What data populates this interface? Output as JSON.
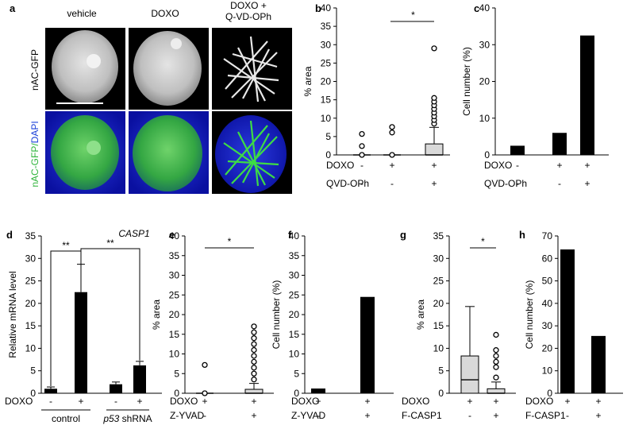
{
  "figure": {
    "panel_letters": [
      "a",
      "b",
      "c",
      "d",
      "e",
      "f",
      "g",
      "h"
    ],
    "micrograph": {
      "column_labels": [
        "vehicle",
        "DOXO",
        "DOXO +",
        "Q-VD-OPh"
      ],
      "row_labels": [
        "nAC-GFP",
        "nAC-GFP/",
        "DAPI"
      ]
    },
    "gene_label": "CASP1",
    "significance": "*",
    "significance_double": "**",
    "sign_minus": "-",
    "sign_plus": "+",
    "group_labels": [
      "control",
      "p53",
      " shRNA"
    ]
  },
  "chart_data": [
    {
      "panel": "b",
      "type": "box",
      "ylabel": "% area",
      "ylim": [
        0,
        40
      ],
      "yticks": [
        0,
        5,
        10,
        15,
        20,
        25,
        30,
        35,
        40
      ],
      "groups": [
        {
          "min": 0,
          "q1": 0,
          "median": 0,
          "q3": 0,
          "max": 0,
          "outliers": [
            0,
            2.4,
            5.7
          ]
        },
        {
          "min": 0,
          "q1": 0,
          "median": 0,
          "q3": 0,
          "max": 0,
          "outliers": [
            0,
            6.1,
            7.6
          ]
        },
        {
          "min": 0,
          "q1": 0,
          "median": 0,
          "q3": 3,
          "max": 7.5,
          "outliers": [
            8.5,
            9.5,
            10.5,
            11.5,
            12.5,
            13.5,
            14.5,
            15.5,
            29
          ]
        }
      ],
      "treatments": [
        {
          "label": "DOXO",
          "values": [
            "-",
            "+",
            "+"
          ]
        },
        {
          "label": "QVD-OPh",
          "values": [
            "-",
            "-",
            "+"
          ]
        }
      ],
      "significance": [
        {
          "from": 1,
          "to": 2,
          "label": "*"
        }
      ]
    },
    {
      "panel": "c",
      "type": "bar",
      "ylabel": "Cell number (%)",
      "ylim": [
        0,
        40
      ],
      "yticks": [
        0,
        10,
        20,
        30,
        40
      ],
      "values": [
        2.5,
        6,
        32.5
      ],
      "treatments": [
        {
          "label": "DOXO",
          "values": [
            "-",
            "+",
            "+"
          ]
        },
        {
          "label": "QVD-OPh",
          "values": [
            "-",
            "-",
            "+"
          ]
        }
      ]
    },
    {
      "panel": "d",
      "type": "bar",
      "ylabel": "Relative mRNA level",
      "ylim": [
        0,
        35
      ],
      "yticks": [
        0,
        5,
        10,
        15,
        20,
        25,
        30,
        35
      ],
      "values": [
        1,
        22.5,
        2,
        6.2
      ],
      "errors": [
        0.4,
        6.2,
        0.5,
        0.9
      ],
      "treatments": [
        {
          "label": "DOXO",
          "values": [
            "-",
            "+",
            "-",
            "+"
          ]
        }
      ],
      "groups": [
        {
          "label": "control",
          "span": [
            0,
            1
          ]
        },
        {
          "label": "p53 shRNA",
          "span": [
            2,
            3
          ]
        }
      ],
      "significance": [
        {
          "from": 0,
          "to": 1,
          "label": "**"
        },
        {
          "from": 1,
          "to": 3,
          "label": "**"
        }
      ]
    },
    {
      "panel": "e",
      "type": "box",
      "ylabel": "% area",
      "ylim": [
        0,
        40
      ],
      "yticks": [
        0,
        5,
        10,
        15,
        20,
        25,
        30,
        35,
        40
      ],
      "groups": [
        {
          "min": 0,
          "q1": 0,
          "median": 0,
          "q3": 0,
          "max": 0,
          "outliers": [
            0,
            7.2
          ]
        },
        {
          "min": 0,
          "q1": 0,
          "median": 0,
          "q3": 1,
          "max": 2.5,
          "outliers": [
            3.5,
            5,
            6.5,
            8,
            9.5,
            11,
            12.5,
            14,
            15.5,
            17
          ]
        }
      ],
      "treatments": [
        {
          "label": "DOXO",
          "values": [
            "+",
            "+"
          ]
        },
        {
          "label": "Z-YVAD",
          "values": [
            "-",
            "+"
          ]
        }
      ],
      "significance": [
        {
          "from": 0,
          "to": 1,
          "label": "*"
        }
      ]
    },
    {
      "panel": "f",
      "type": "bar",
      "ylabel": "Cell number (%)",
      "ylim": [
        0,
        40
      ],
      "yticks": [
        0,
        5,
        10,
        15,
        20,
        25,
        30,
        35,
        40
      ],
      "values": [
        1.2,
        24.5
      ],
      "treatments": [
        {
          "label": "DOXO",
          "values": [
            "+",
            "+"
          ]
        },
        {
          "label": "Z-YVAD",
          "values": [
            "-",
            "+"
          ]
        }
      ]
    },
    {
      "panel": "g",
      "type": "box",
      "ylabel": "% area",
      "ylim": [
        0,
        35
      ],
      "yticks": [
        0,
        5,
        10,
        15,
        20,
        25,
        30,
        35
      ],
      "groups": [
        {
          "min": 0,
          "q1": 0,
          "median": 3,
          "q3": 8.3,
          "max": 19.3,
          "outliers": []
        },
        {
          "min": 0,
          "q1": 0,
          "median": 0,
          "q3": 1,
          "max": 2.5,
          "outliers": [
            3.5,
            5.8,
            7,
            8.3,
            9.6,
            13
          ]
        }
      ],
      "treatments": [
        {
          "label": "DOXO",
          "values": [
            "+",
            "+"
          ]
        },
        {
          "label": "F-CASP1",
          "values": [
            "-",
            "+"
          ]
        }
      ],
      "significance": [
        {
          "from": 0,
          "to": 1,
          "label": "*"
        }
      ]
    },
    {
      "panel": "h",
      "type": "bar",
      "ylabel": "Cell number (%)",
      "ylim": [
        0,
        70
      ],
      "yticks": [
        0,
        10,
        20,
        30,
        40,
        50,
        60,
        70
      ],
      "values": [
        64,
        25.5
      ],
      "treatments": [
        {
          "label": "DOXO",
          "values": [
            "+",
            "+"
          ]
        },
        {
          "label": "F-CASP1",
          "values": [
            "-",
            "+"
          ]
        }
      ]
    }
  ],
  "colors": {
    "gfp": "#36c43a",
    "dapi": "#1822c8",
    "bar": "#000000",
    "box_fill": "#d9d9d9"
  }
}
